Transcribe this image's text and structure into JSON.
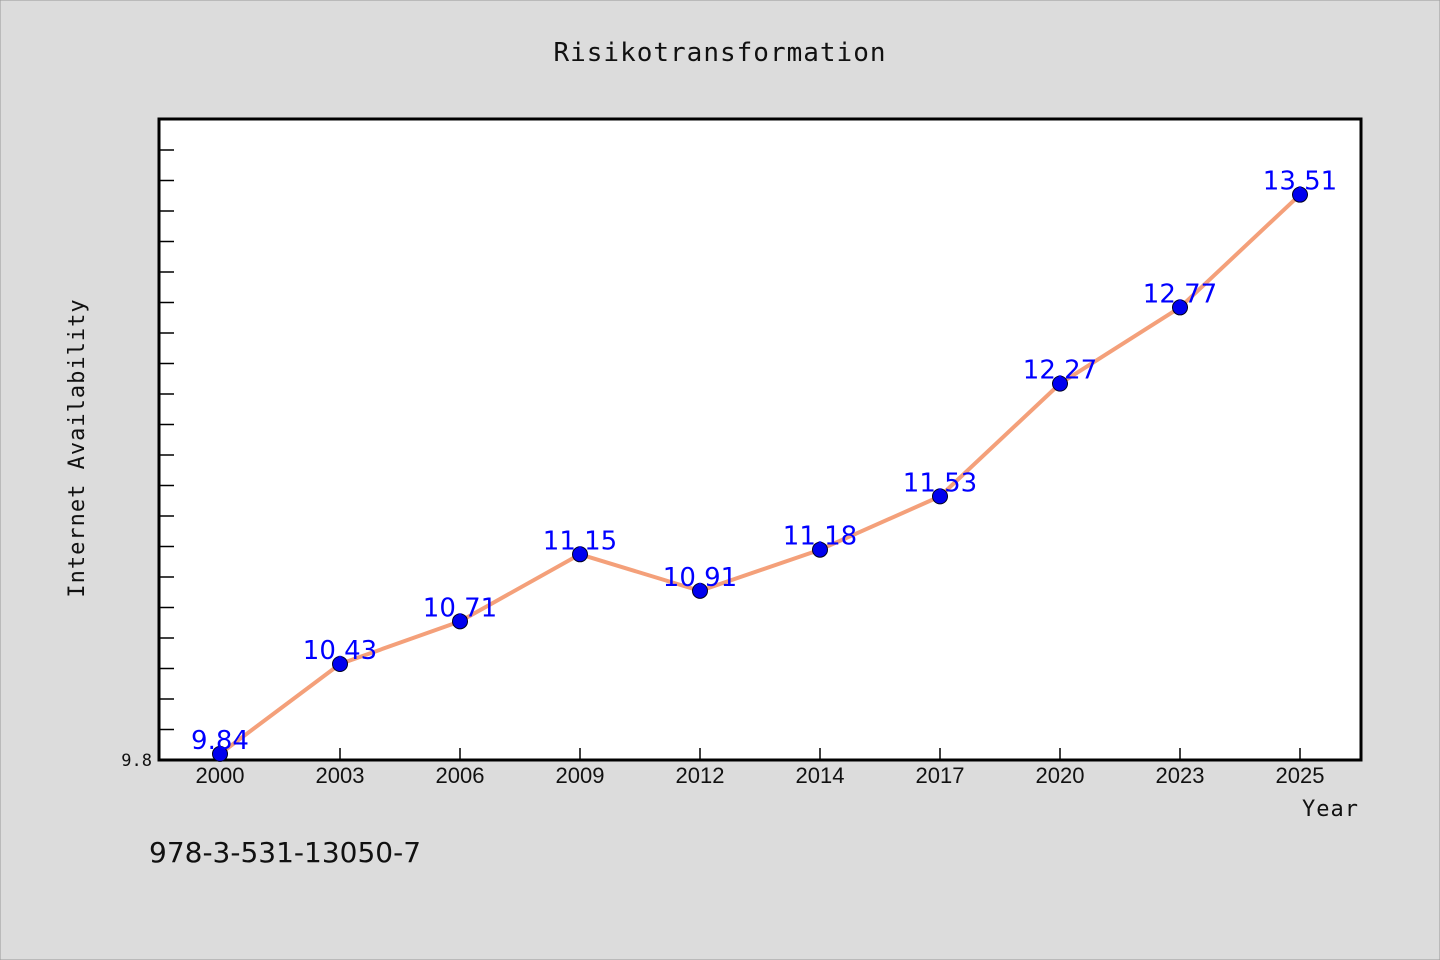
{
  "chart_data": {
    "type": "line",
    "title": "Risikotransformation",
    "xlabel": "Year",
    "ylabel": "Internet Availability",
    "categories": [
      "2000",
      "2003",
      "2006",
      "2009",
      "2012",
      "2014",
      "2017",
      "2020",
      "2023",
      "2025"
    ],
    "series": [
      {
        "values": [
          9.84,
          10.43,
          10.71,
          11.15,
          10.91,
          11.18,
          11.53,
          12.27,
          12.77,
          13.51
        ],
        "labels": [
          "9.84",
          "10.43",
          "10.71",
          "11.15",
          "10.91",
          "11.18",
          "11.53",
          "12.27",
          "12.77",
          "13.51"
        ]
      }
    ],
    "ylim": [
      9.8,
      14.0
    ],
    "yticks": [
      "9.8"
    ],
    "grid": false,
    "colors": {
      "line": "#f4a07a",
      "marker": "#0000ee",
      "label": "#0000ff"
    }
  },
  "footnote": "978-3-531-13050-7"
}
